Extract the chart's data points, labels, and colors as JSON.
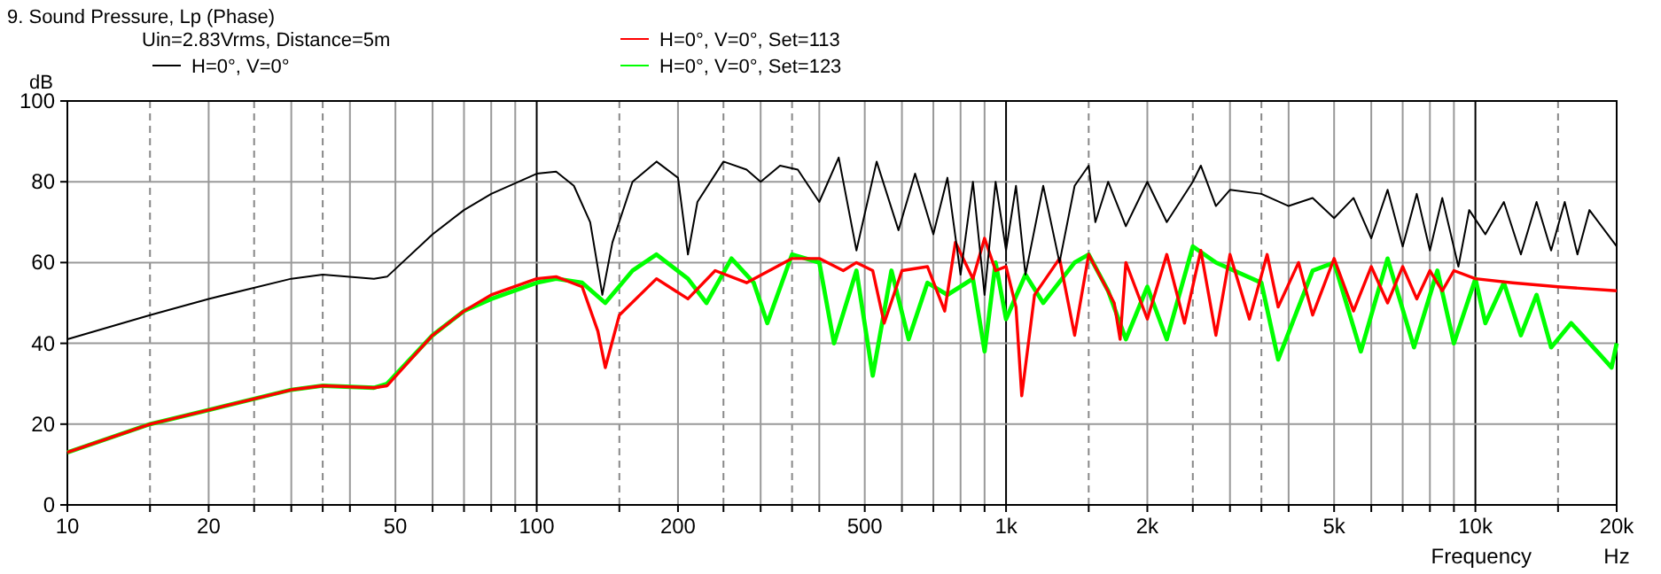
{
  "chart_data": {
    "type": "line",
    "title": "9. Sound Pressure, Lp (Phase)",
    "ylabel": "dB",
    "xlabel": "Frequency",
    "annotations": [
      "Uin=2.83Vrms, Distance=5m",
      "Hz"
    ],
    "log": "x",
    "grid": true,
    "legend": "top left",
    "line_style": "solid",
    "marker": "none",
    "xlim": [
      10,
      20000
    ],
    "ylim": [
      0,
      100
    ],
    "yticks": [
      0,
      20,
      40,
      60,
      80,
      100
    ],
    "xticks": [
      10,
      {
        "value": 15,
        "label": null
      },
      20,
      {
        "value": 25,
        "label": null
      },
      {
        "value": 30,
        "label": null
      },
      {
        "value": 35,
        "label": null
      },
      {
        "value": 40,
        "label": null
      },
      50,
      {
        "value": 60,
        "label": null
      },
      {
        "value": 70,
        "label": null
      },
      {
        "value": 80,
        "label": null
      },
      {
        "value": 90,
        "label": null
      },
      100,
      {
        "value": 150,
        "label": null
      },
      200,
      {
        "value": 250,
        "label": null
      },
      {
        "value": 300,
        "label": null
      },
      {
        "value": 350,
        "label": null
      },
      {
        "value": 400,
        "label": null
      },
      500,
      {
        "value": 600,
        "label": null
      },
      {
        "value": 700,
        "label": null
      },
      {
        "value": 800,
        "label": null
      },
      {
        "value": 900,
        "label": null
      },
      {
        "value": 1000,
        "label": "1k"
      },
      {
        "value": 1500,
        "label": null
      },
      {
        "value": 2000,
        "label": "2k"
      },
      {
        "value": 2500,
        "label": null
      },
      {
        "value": 3000,
        "label": null
      },
      {
        "value": 3500,
        "label": null
      },
      {
        "value": 4000,
        "label": null
      },
      {
        "value": 5000,
        "label": "5k"
      },
      {
        "value": 6000,
        "label": null
      },
      {
        "value": 7000,
        "label": null
      },
      {
        "value": 8000,
        "label": null
      },
      {
        "value": 9000,
        "label": null
      },
      {
        "value": 10000,
        "label": "10k"
      },
      {
        "value": 15000,
        "label": null
      },
      {
        "value": 20000,
        "label": "20k"
      }
    ],
    "series": [
      {
        "name": "H=0°, V=0°",
        "color": "#000000",
        "x": [
          10,
          15,
          20,
          30,
          35,
          45,
          48,
          60,
          70,
          80,
          100,
          110,
          120,
          130,
          138,
          145,
          160,
          180,
          200,
          210,
          220,
          250,
          280,
          300,
          330,
          360,
          400,
          440,
          480,
          530,
          590,
          640,
          700,
          750,
          800,
          850,
          900,
          950,
          1000,
          1050,
          1100,
          1200,
          1300,
          1400,
          1500,
          1550,
          1650,
          1800,
          2000,
          2200,
          2500,
          2600,
          2800,
          3000,
          3500,
          4000,
          4500,
          5000,
          5500,
          6000,
          6500,
          7000,
          7500,
          8000,
          8500,
          9200,
          9700,
          10500,
          11500,
          12500,
          13500,
          14500,
          15500,
          16500,
          17500,
          20000
        ],
        "values": [
          41,
          47,
          51,
          56,
          57,
          56,
          56.5,
          67,
          73,
          77,
          82,
          82.5,
          79,
          70,
          52,
          65,
          80,
          85,
          81,
          62,
          75,
          85,
          83,
          80,
          84,
          83,
          75,
          86,
          63,
          85,
          68,
          82,
          67,
          81,
          57,
          80,
          52,
          80,
          63,
          79,
          57,
          79,
          60,
          79,
          84,
          70,
          80,
          69,
          80,
          70,
          80,
          84,
          74,
          78,
          77,
          74,
          76,
          71,
          76,
          66,
          78,
          64,
          77,
          63,
          76,
          59,
          73,
          67,
          75,
          62,
          75,
          63,
          75,
          62,
          73,
          64
        ]
      },
      {
        "name": "H=0°, V=0°, Set=113",
        "color": "#ff0000",
        "x": [
          10,
          15,
          20,
          30,
          35,
          45,
          48,
          60,
          70,
          80,
          100,
          110,
          125,
          135,
          140,
          150,
          180,
          210,
          240,
          280,
          350,
          400,
          450,
          480,
          520,
          550,
          600,
          680,
          740,
          780,
          850,
          900,
          950,
          1000,
          1050,
          1080,
          1150,
          1300,
          1400,
          1500,
          1700,
          1750,
          1800,
          2000,
          2200,
          2400,
          2600,
          2800,
          3000,
          3300,
          3600,
          3800,
          4200,
          4500,
          5000,
          5500,
          6000,
          6500,
          7000,
          7500,
          8000,
          8500,
          9000,
          10000,
          12000,
          15000,
          20000
        ],
        "values": [
          13,
          20,
          23.5,
          28.5,
          29.5,
          29,
          29.5,
          42,
          48,
          52,
          56,
          56.5,
          54,
          43,
          34,
          47,
          56,
          51,
          58,
          55,
          61,
          61,
          58,
          60,
          58,
          45,
          58,
          59,
          48,
          65,
          56,
          66,
          58,
          59,
          49,
          27,
          52,
          61,
          42,
          62,
          50,
          41,
          60,
          46,
          62,
          45,
          63,
          42,
          62,
          46,
          62,
          49,
          60,
          47,
          61,
          48,
          59,
          50,
          59,
          51,
          58,
          53,
          58,
          56,
          55,
          54,
          53
        ]
      },
      {
        "name": "H=0°, V=0°, Set=123",
        "color": "#00ff00",
        "x": [
          10,
          15,
          20,
          30,
          35,
          45,
          48,
          60,
          70,
          80,
          100,
          110,
          125,
          140,
          160,
          180,
          210,
          230,
          260,
          290,
          310,
          350,
          400,
          430,
          480,
          520,
          570,
          620,
          680,
          750,
          850,
          900,
          950,
          1000,
          1100,
          1200,
          1400,
          1500,
          1650,
          1800,
          2000,
          2200,
          2500,
          2800,
          3500,
          3800,
          4500,
          5000,
          5700,
          6500,
          7400,
          8300,
          9000,
          10000,
          10500,
          11500,
          12500,
          13500,
          14500,
          16000,
          18500,
          19500,
          20000
        ],
        "values": [
          13,
          20,
          23.5,
          28.5,
          29.5,
          29,
          30,
          42,
          48,
          51,
          55,
          56,
          55,
          50,
          58,
          62,
          56,
          50,
          61,
          55,
          45,
          62,
          60,
          40,
          58,
          32,
          58,
          41,
          55,
          52,
          56,
          38,
          60,
          46,
          57,
          50,
          60,
          62,
          53,
          41,
          54,
          41,
          64,
          60,
          55,
          36,
          58,
          60,
          38,
          61,
          39,
          58,
          40,
          56,
          45,
          55,
          42,
          52,
          39,
          45,
          37,
          34,
          40
        ]
      }
    ]
  }
}
